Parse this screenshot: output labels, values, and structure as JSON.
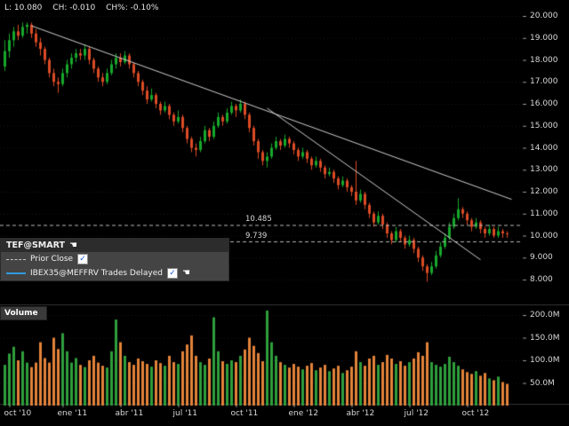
{
  "quote": {
    "last": "L: 10.080",
    "change": "CH: -0.010",
    "change_pct": "CH%: -0.10%"
  },
  "icons": {
    "hand": "☚",
    "check": "✓"
  },
  "legend": {
    "title": "TEF@SMART",
    "items": [
      {
        "label": "Prior Close",
        "swatch": "dashed-gray",
        "checked": true
      },
      {
        "label": "IBEX35@MEFFRV Trades Delayed",
        "swatch": "solid-blue",
        "checked": true
      }
    ]
  },
  "volume_pane": {
    "title": "Volume"
  },
  "colors": {
    "up": "#17a82b",
    "down": "#dc4b26",
    "vol_up": "#2f9e3c",
    "vol_down": "#e2823a",
    "trend": "#cfcfcf",
    "dashed": "#b9b9b9",
    "blue_line": "#2e9ae0"
  },
  "price_axis": {
    "ticks": [
      {
        "label": "20.000",
        "value": 20
      },
      {
        "label": "19.000",
        "value": 19
      },
      {
        "label": "18.000",
        "value": 18
      },
      {
        "label": "17.000",
        "value": 17
      },
      {
        "label": "16.000",
        "value": 16
      },
      {
        "label": "15.000",
        "value": 15
      },
      {
        "label": "14.000",
        "value": 14
      },
      {
        "label": "13.000",
        "value": 13
      },
      {
        "label": "12.000",
        "value": 12
      },
      {
        "label": "11.000",
        "value": 11
      },
      {
        "label": "10.000",
        "value": 10
      },
      {
        "label": "9.000",
        "value": 9
      },
      {
        "label": "8.000",
        "value": 8
      }
    ]
  },
  "volume_axis": {
    "ticks": [
      {
        "label": "200.0M",
        "value": 200
      },
      {
        "label": "150.0M",
        "value": 150
      },
      {
        "label": "100.0M",
        "value": 100
      },
      {
        "label": "50.0M",
        "value": 50
      }
    ]
  },
  "time_axis": {
    "ticks": [
      {
        "label": "oct '10",
        "bar": 1
      },
      {
        "label": "ene '11",
        "bar": 13
      },
      {
        "label": "abr '11",
        "bar": 26
      },
      {
        "label": "jul '11",
        "bar": 39
      },
      {
        "label": "oct '11",
        "bar": 52
      },
      {
        "label": "ene '12",
        "bar": 65
      },
      {
        "label": "abr '12",
        "bar": 78
      },
      {
        "label": "jul '12",
        "bar": 91
      },
      {
        "label": "oct '12",
        "bar": 104
      }
    ]
  },
  "price_lines": [
    {
      "label": "10.485",
      "value": 10.485
    },
    {
      "label": "9.739",
      "value": 9.739
    }
  ],
  "trend_lines": [
    {
      "b1": 6,
      "p1": 19.55,
      "b2": 114,
      "p2": 11.65
    },
    {
      "b1": 59,
      "p1": 15.8,
      "b2": 107,
      "p2": 8.9
    }
  ],
  "chart_data": {
    "type": "candlestick",
    "title": "TEF@SMART weekly with volume",
    "price_ylim": [
      7.0,
      20.7
    ],
    "volume_ylim_M": [
      0,
      220
    ],
    "x_range": [
      "oct 2010",
      "dic 2012"
    ],
    "columns": [
      "open",
      "high",
      "low",
      "close",
      "volume_M"
    ],
    "bars": [
      [
        17.7,
        18.9,
        17.5,
        18.4,
        90
      ],
      [
        18.4,
        19.2,
        18.1,
        18.9,
        115
      ],
      [
        18.9,
        19.5,
        18.6,
        19.3,
        130
      ],
      [
        19.3,
        19.6,
        18.9,
        19.1,
        100
      ],
      [
        19.1,
        19.7,
        19.0,
        19.5,
        120
      ],
      [
        19.5,
        19.7,
        19.2,
        19.6,
        95
      ],
      [
        19.6,
        19.7,
        19.0,
        19.2,
        85
      ],
      [
        19.2,
        19.4,
        18.6,
        18.8,
        95
      ],
      [
        18.8,
        19.0,
        18.2,
        18.5,
        140
      ],
      [
        18.5,
        18.6,
        17.8,
        18.0,
        105
      ],
      [
        18.0,
        18.1,
        17.2,
        17.4,
        95
      ],
      [
        17.4,
        17.6,
        16.8,
        17.0,
        150
      ],
      [
        17.0,
        17.2,
        16.5,
        16.9,
        125
      ],
      [
        16.9,
        17.6,
        16.8,
        17.4,
        160
      ],
      [
        17.4,
        18.0,
        17.2,
        17.8,
        120
      ],
      [
        17.8,
        18.3,
        17.6,
        18.1,
        95
      ],
      [
        18.1,
        18.5,
        17.9,
        18.3,
        105
      ],
      [
        18.3,
        18.5,
        18.0,
        18.2,
        90
      ],
      [
        18.2,
        18.7,
        18.0,
        18.5,
        85
      ],
      [
        18.5,
        18.6,
        17.8,
        18.0,
        100
      ],
      [
        18.0,
        18.1,
        17.4,
        17.6,
        110
      ],
      [
        17.6,
        17.7,
        17.0,
        17.2,
        95
      ],
      [
        17.2,
        17.4,
        16.8,
        17.0,
        88
      ],
      [
        17.0,
        17.6,
        16.9,
        17.4,
        84
      ],
      [
        17.4,
        18.0,
        17.3,
        17.8,
        120
      ],
      [
        17.8,
        18.3,
        17.6,
        18.1,
        190
      ],
      [
        18.1,
        18.3,
        17.7,
        17.9,
        140
      ],
      [
        17.9,
        18.4,
        17.8,
        18.2,
        110
      ],
      [
        18.2,
        18.3,
        17.6,
        17.8,
        96
      ],
      [
        17.8,
        17.9,
        17.2,
        17.4,
        90
      ],
      [
        17.4,
        17.5,
        16.8,
        17.0,
        104
      ],
      [
        17.0,
        17.1,
        16.4,
        16.6,
        98
      ],
      [
        16.6,
        16.8,
        16.0,
        16.2,
        92
      ],
      [
        16.2,
        16.7,
        16.1,
        16.4,
        86
      ],
      [
        16.4,
        16.5,
        15.8,
        16.0,
        100
      ],
      [
        16.0,
        16.1,
        15.5,
        15.7,
        94
      ],
      [
        15.7,
        16.1,
        15.6,
        15.9,
        88
      ],
      [
        15.9,
        16.0,
        15.3,
        15.5,
        110
      ],
      [
        15.5,
        15.6,
        15.0,
        15.2,
        96
      ],
      [
        15.2,
        15.7,
        15.1,
        15.4,
        92
      ],
      [
        15.4,
        15.5,
        14.7,
        14.9,
        120
      ],
      [
        14.9,
        15.0,
        14.2,
        14.4,
        135
      ],
      [
        14.4,
        14.5,
        13.8,
        14.0,
        155
      ],
      [
        14.0,
        14.2,
        13.6,
        13.9,
        110
      ],
      [
        13.9,
        14.5,
        13.8,
        14.3,
        96
      ],
      [
        14.3,
        15.0,
        14.2,
        14.8,
        90
      ],
      [
        14.8,
        14.9,
        14.3,
        14.5,
        104
      ],
      [
        14.5,
        15.2,
        14.4,
        15.0,
        195
      ],
      [
        15.0,
        15.6,
        14.9,
        15.4,
        120
      ],
      [
        15.4,
        15.5,
        15.0,
        15.2,
        98
      ],
      [
        15.2,
        15.8,
        15.1,
        15.6,
        92
      ],
      [
        15.6,
        16.1,
        15.5,
        15.9,
        100
      ],
      [
        15.9,
        16.0,
        15.4,
        15.7,
        96
      ],
      [
        15.7,
        16.2,
        15.6,
        16.0,
        110
      ],
      [
        16.0,
        16.1,
        15.3,
        15.5,
        124
      ],
      [
        15.5,
        15.6,
        14.7,
        14.9,
        150
      ],
      [
        14.9,
        15.0,
        14.1,
        14.3,
        132
      ],
      [
        14.3,
        14.4,
        13.5,
        13.8,
        116
      ],
      [
        13.8,
        13.9,
        13.2,
        13.4,
        98
      ],
      [
        13.4,
        13.8,
        13.1,
        13.6,
        210
      ],
      [
        13.6,
        14.2,
        13.5,
        14.0,
        140
      ],
      [
        14.0,
        14.5,
        13.9,
        14.3,
        110
      ],
      [
        14.3,
        14.4,
        13.9,
        14.1,
        96
      ],
      [
        14.1,
        14.6,
        14.0,
        14.4,
        90
      ],
      [
        14.4,
        14.5,
        14.0,
        14.2,
        84
      ],
      [
        14.2,
        14.3,
        13.7,
        13.9,
        92
      ],
      [
        13.9,
        14.0,
        13.4,
        13.6,
        86
      ],
      [
        13.6,
        14.0,
        13.5,
        13.8,
        80
      ],
      [
        13.8,
        13.9,
        13.3,
        13.5,
        88
      ],
      [
        13.5,
        13.6,
        13.0,
        13.2,
        94
      ],
      [
        13.2,
        13.6,
        13.1,
        13.4,
        78
      ],
      [
        13.4,
        13.5,
        12.9,
        13.1,
        84
      ],
      [
        13.1,
        13.2,
        12.6,
        12.8,
        90
      ],
      [
        12.8,
        13.1,
        12.7,
        12.9,
        76
      ],
      [
        12.9,
        13.0,
        12.4,
        12.6,
        82
      ],
      [
        12.6,
        12.7,
        12.1,
        12.3,
        88
      ],
      [
        12.3,
        12.7,
        12.2,
        12.5,
        72
      ],
      [
        12.5,
        12.6,
        12.0,
        12.2,
        78
      ],
      [
        12.2,
        12.3,
        11.8,
        12.0,
        86
      ],
      [
        12.0,
        13.4,
        11.4,
        11.6,
        120
      ],
      [
        11.6,
        12.1,
        11.5,
        11.9,
        96
      ],
      [
        11.9,
        12.0,
        11.2,
        11.4,
        88
      ],
      [
        11.4,
        11.5,
        10.8,
        11.0,
        104
      ],
      [
        11.0,
        11.1,
        10.4,
        10.6,
        110
      ],
      [
        10.6,
        11.1,
        10.5,
        10.9,
        90
      ],
      [
        10.9,
        11.0,
        10.3,
        10.5,
        96
      ],
      [
        10.5,
        10.6,
        9.9,
        10.1,
        112
      ],
      [
        10.1,
        10.2,
        9.6,
        9.8,
        104
      ],
      [
        9.8,
        10.4,
        9.7,
        10.2,
        92
      ],
      [
        10.2,
        10.3,
        9.7,
        9.9,
        98
      ],
      [
        9.9,
        10.0,
        9.4,
        9.6,
        88
      ],
      [
        9.6,
        10.0,
        9.5,
        9.8,
        96
      ],
      [
        9.8,
        9.9,
        9.2,
        9.4,
        104
      ],
      [
        9.4,
        9.5,
        8.8,
        9.0,
        118
      ],
      [
        9.0,
        9.1,
        8.4,
        8.6,
        110
      ],
      [
        8.6,
        8.7,
        7.9,
        8.3,
        140
      ],
      [
        8.3,
        8.8,
        8.2,
        8.6,
        96
      ],
      [
        8.6,
        9.3,
        8.5,
        9.1,
        90
      ],
      [
        9.1,
        9.7,
        9.0,
        9.5,
        86
      ],
      [
        9.5,
        10.1,
        9.4,
        9.9,
        92
      ],
      [
        9.9,
        10.6,
        9.8,
        10.4,
        108
      ],
      [
        10.4,
        11.0,
        10.3,
        10.8,
        96
      ],
      [
        10.8,
        11.7,
        10.7,
        11.2,
        88
      ],
      [
        11.2,
        11.3,
        10.8,
        11.0,
        80
      ],
      [
        11.0,
        11.1,
        10.5,
        10.7,
        74
      ],
      [
        10.7,
        10.8,
        10.2,
        10.4,
        70
      ],
      [
        10.4,
        10.8,
        10.3,
        10.6,
        76
      ],
      [
        10.6,
        10.7,
        10.1,
        10.3,
        66
      ],
      [
        10.3,
        10.4,
        9.9,
        10.1,
        72
      ],
      [
        10.1,
        10.5,
        10.0,
        10.3,
        60
      ],
      [
        10.3,
        10.4,
        9.9,
        10.0,
        56
      ],
      [
        10.0,
        10.4,
        9.9,
        10.2,
        64
      ],
      [
        10.2,
        10.3,
        9.9,
        10.1,
        52
      ],
      [
        10.1,
        10.2,
        9.9,
        10.08,
        48
      ]
    ]
  }
}
